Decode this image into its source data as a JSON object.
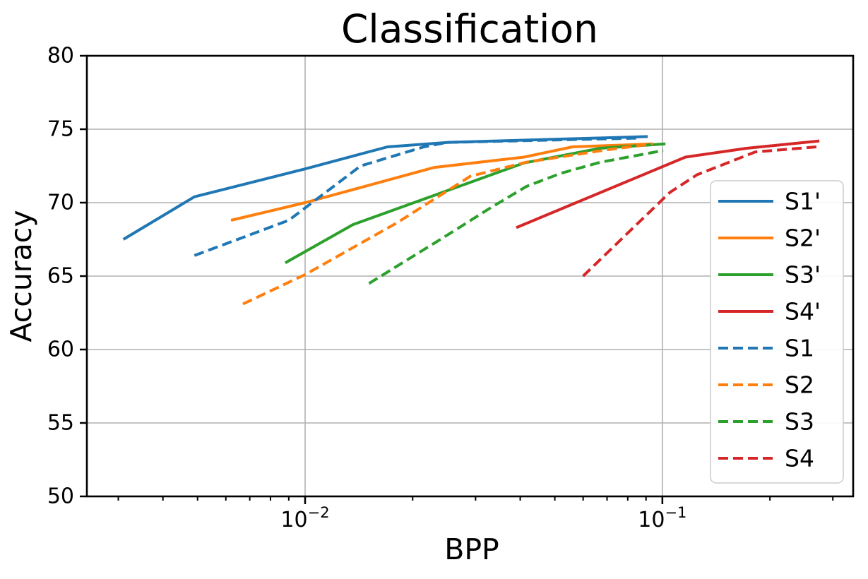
{
  "figure": {
    "background": "#ffffff"
  },
  "chart_data": {
    "type": "line",
    "title": "Classification",
    "xlabel": "BPP",
    "ylabel": "Accuracy",
    "xscale": "log",
    "xlim": [
      0.00245,
      0.342
    ],
    "ylim": [
      50,
      80
    ],
    "yticks": [
      50,
      55,
      60,
      65,
      70,
      75,
      80
    ],
    "xticks": [
      {
        "value": 0.01,
        "label": "10⁻²",
        "base": "10",
        "exponent": "−2"
      },
      {
        "value": 0.1,
        "label": "10⁻¹",
        "base": "10",
        "exponent": "−1"
      }
    ],
    "x_minor_ticks": [
      0.003,
      0.004,
      0.005,
      0.006,
      0.007,
      0.008,
      0.009,
      0.02,
      0.03,
      0.04,
      0.05,
      0.06,
      0.07,
      0.08,
      0.09,
      0.2,
      0.3
    ],
    "grid": true,
    "grid_color": "#b0b0b0",
    "spine_color": "#000000",
    "legend": {
      "location": "lower right",
      "entries": [
        "S1'",
        "S2'",
        "S3'",
        "S4'",
        "S1",
        "S2",
        "S3",
        "S4"
      ]
    },
    "series": [
      {
        "name": "S1'",
        "color": "#1f77b4",
        "style": "solid",
        "points": [
          [
            0.0031,
            67.5
          ],
          [
            0.0049,
            70.4
          ],
          [
            0.01,
            72.3
          ],
          [
            0.017,
            73.8
          ],
          [
            0.025,
            74.1
          ],
          [
            0.091,
            74.5
          ]
        ]
      },
      {
        "name": "S2'",
        "color": "#ff7f0e",
        "style": "solid",
        "points": [
          [
            0.0062,
            68.8
          ],
          [
            0.01,
            70.0
          ],
          [
            0.023,
            72.4
          ],
          [
            0.041,
            73.1
          ],
          [
            0.056,
            73.8
          ],
          [
            0.094,
            74.0
          ]
        ]
      },
      {
        "name": "S3'",
        "color": "#2ca02c",
        "style": "solid",
        "points": [
          [
            0.0088,
            65.9
          ],
          [
            0.0136,
            68.5
          ],
          [
            0.023,
            70.5
          ],
          [
            0.041,
            72.7
          ],
          [
            0.067,
            73.7
          ],
          [
            0.102,
            74.0
          ]
        ]
      },
      {
        "name": "S4'",
        "color": "#d62728",
        "style": "solid",
        "points": [
          [
            0.039,
            68.3
          ],
          [
            0.116,
            73.1
          ],
          [
            0.172,
            73.7
          ],
          [
            0.275,
            74.2
          ]
        ]
      },
      {
        "name": "S1",
        "color": "#1f77b4",
        "style": "dashed",
        "points": [
          [
            0.0049,
            66.4
          ],
          [
            0.009,
            68.8
          ],
          [
            0.0143,
            72.5
          ],
          [
            0.0215,
            73.8
          ],
          [
            0.025,
            74.1
          ],
          [
            0.087,
            74.4
          ]
        ]
      },
      {
        "name": "S2",
        "color": "#ff7f0e",
        "style": "dashed",
        "points": [
          [
            0.0067,
            63.1
          ],
          [
            0.01,
            65.1
          ],
          [
            0.018,
            68.6
          ],
          [
            0.029,
            71.8
          ],
          [
            0.0415,
            72.75
          ],
          [
            0.07,
            73.6
          ],
          [
            0.094,
            74.0
          ]
        ]
      },
      {
        "name": "S3",
        "color": "#2ca02c",
        "style": "dashed",
        "points": [
          [
            0.0151,
            64.5
          ],
          [
            0.0243,
            67.6
          ],
          [
            0.0328,
            69.6
          ],
          [
            0.0416,
            71.1
          ],
          [
            0.052,
            72.0
          ],
          [
            0.067,
            72.75
          ],
          [
            0.1005,
            73.55
          ]
        ]
      },
      {
        "name": "S4",
        "color": "#d62728",
        "style": "dashed",
        "points": [
          [
            0.06,
            65.0
          ],
          [
            0.105,
            70.7
          ],
          [
            0.125,
            71.9
          ],
          [
            0.182,
            73.45
          ],
          [
            0.27,
            73.8
          ]
        ]
      }
    ]
  }
}
